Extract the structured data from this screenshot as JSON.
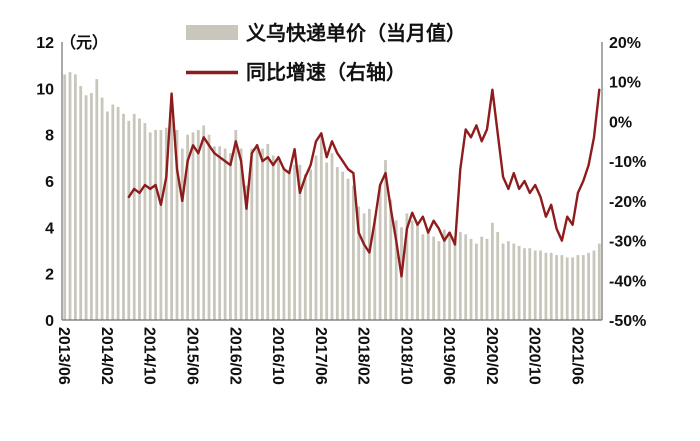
{
  "chart_data": {
    "type": "bar+line",
    "legend": {
      "bars": "义乌快递单价（当月值）",
      "line": "同比增速（右轴）"
    },
    "left_axis": {
      "unit": "（元）",
      "min": 0,
      "max": 12,
      "ticks": [
        12,
        10,
        8,
        6,
        4,
        2,
        0
      ]
    },
    "right_axis": {
      "min": -50,
      "max": 20,
      "tick_values": [
        20,
        10,
        0,
        -10,
        -20,
        -30,
        -40,
        -50
      ],
      "tick_labels": [
        "20%",
        "10%",
        "0%",
        "-10%",
        "-20%",
        "-30%",
        "-40%",
        "-50%"
      ]
    },
    "x_tick_every": 8,
    "categories": [
      "2013/06",
      "2013/07",
      "2013/08",
      "2013/09",
      "2013/10",
      "2013/11",
      "2013/12",
      "2014/01",
      "2014/02",
      "2014/03",
      "2014/04",
      "2014/05",
      "2014/06",
      "2014/07",
      "2014/08",
      "2014/09",
      "2014/10",
      "2014/11",
      "2014/12",
      "2015/01",
      "2015/02",
      "2015/03",
      "2015/04",
      "2015/05",
      "2015/06",
      "2015/07",
      "2015/08",
      "2015/09",
      "2015/10",
      "2015/11",
      "2015/12",
      "2016/01",
      "2016/02",
      "2016/03",
      "2016/04",
      "2016/05",
      "2016/06",
      "2016/07",
      "2016/08",
      "2016/09",
      "2016/10",
      "2016/11",
      "2016/12",
      "2017/01",
      "2017/02",
      "2017/03",
      "2017/04",
      "2017/05",
      "2017/06",
      "2017/07",
      "2017/08",
      "2017/09",
      "2017/10",
      "2017/11",
      "2017/12",
      "2018/01",
      "2018/02",
      "2018/03",
      "2018/04",
      "2018/05",
      "2018/06",
      "2018/07",
      "2018/08",
      "2018/09",
      "2018/10",
      "2018/11",
      "2018/12",
      "2019/01",
      "2019/02",
      "2019/03",
      "2019/04",
      "2019/05",
      "2019/06",
      "2019/07",
      "2019/08",
      "2019/09",
      "2019/10",
      "2019/11",
      "2019/12",
      "2020/01",
      "2020/02",
      "2020/03",
      "2020/04",
      "2020/05",
      "2020/06",
      "2020/07",
      "2020/08",
      "2020/09",
      "2020/10",
      "2020/11",
      "2020/12",
      "2021/01",
      "2021/02",
      "2021/03",
      "2021/04",
      "2021/05",
      "2021/06",
      "2021/07",
      "2021/08",
      "2021/09",
      "2021/10"
    ],
    "series": [
      {
        "name": "义乌快递单价（当月值）",
        "type": "bar",
        "axis": "left",
        "color": "#c9c7bc",
        "values": [
          10.6,
          10.7,
          10.6,
          10.1,
          9.7,
          9.8,
          10.4,
          9.6,
          9.0,
          9.3,
          9.2,
          8.9,
          8.6,
          8.9,
          8.7,
          8.5,
          8.1,
          8.2,
          8.2,
          8.3,
          9.7,
          8.2,
          7.4,
          8.0,
          8.1,
          8.2,
          8.4,
          8.0,
          7.5,
          7.5,
          7.4,
          7.2,
          8.2,
          7.4,
          5.8,
          7.4,
          7.6,
          7.4,
          7.6,
          7.1,
          6.9,
          6.6,
          6.4,
          6.7,
          6.7,
          6.3,
          6.5,
          7.1,
          7.9,
          6.8,
          7.2,
          6.6,
          6.4,
          6.1,
          5.8,
          4.9,
          4.6,
          4.8,
          4.4,
          5.8,
          6.9,
          5.2,
          4.3,
          4.0,
          4.6,
          4.3,
          4.2,
          3.7,
          3.9,
          3.6,
          3.4,
          3.9,
          3.8,
          3.6,
          3.8,
          3.7,
          3.5,
          3.3,
          3.6,
          3.5,
          4.2,
          3.8,
          3.3,
          3.4,
          3.3,
          3.2,
          3.1,
          3.1,
          3.0,
          3.0,
          2.9,
          2.9,
          2.8,
          2.8,
          2.7,
          2.7,
          2.8,
          2.8,
          2.9,
          3.0,
          3.3
        ]
      },
      {
        "name": "同比增速（右轴）",
        "type": "line",
        "axis": "right",
        "color": "#8e1c1c",
        "values": [
          null,
          null,
          null,
          null,
          null,
          null,
          null,
          null,
          null,
          null,
          null,
          null,
          -19,
          -17,
          -18,
          -16,
          -17,
          -16,
          -21,
          -14,
          7,
          -12,
          -20,
          -10,
          -6,
          -8,
          -4,
          -6,
          -8,
          -9,
          -10,
          -11,
          -5,
          -10,
          -22,
          -8,
          -6,
          -10,
          -9,
          -11,
          -9,
          -12,
          -13,
          -7,
          -18,
          -14,
          -11,
          -5,
          -3,
          -9,
          -5,
          -8,
          -10,
          -12,
          -13,
          -28,
          -31,
          -33,
          -25,
          -16,
          -13,
          -22,
          -30,
          -39,
          -27,
          -23,
          -26,
          -24,
          -28,
          -25,
          -27,
          -30,
          -28,
          -31,
          -12,
          -2,
          -4,
          -1,
          -5,
          -2,
          8,
          -3,
          -14,
          -17,
          -13,
          -17,
          -15,
          -18,
          -16,
          -19,
          -24,
          -21,
          -27,
          -30,
          -24,
          -26,
          -18,
          -15,
          -11,
          -4,
          8
        ]
      }
    ]
  }
}
